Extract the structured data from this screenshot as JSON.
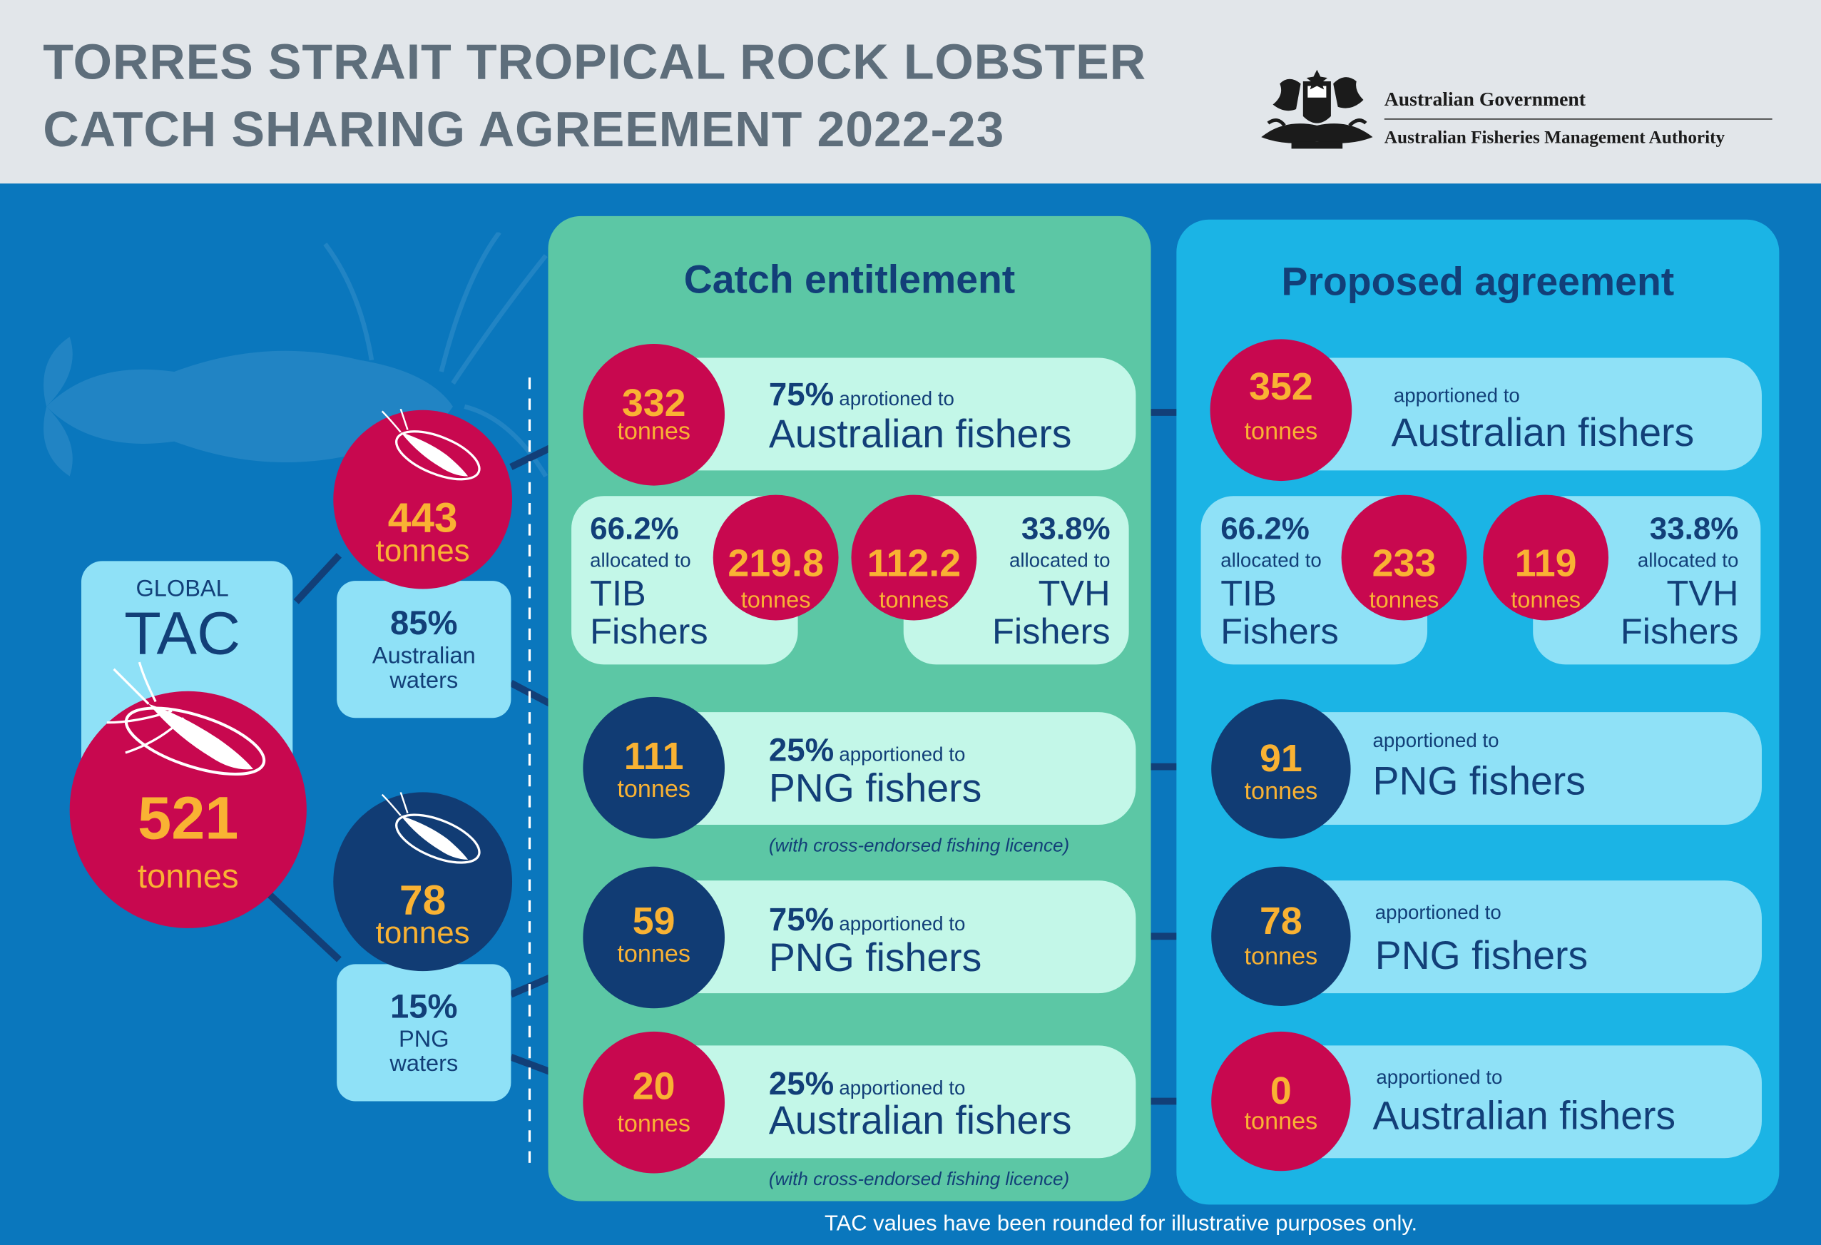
{
  "title": {
    "line1": "TORRES STRAIT TROPICAL ROCK LOBSTER",
    "line2": "CATCH  SHARING AGREEMENT 2022-23"
  },
  "government": {
    "name": "Australian Government",
    "agency": "Australian Fisheries Management Authority",
    "crest_icon": "coat-of-arms-icon"
  },
  "global": {
    "label": "GLOBAL",
    "tac": "TAC",
    "value": "521",
    "unit": "tonnes"
  },
  "australian_waters": {
    "value": "443",
    "unit": "tonnes",
    "percent": "85%",
    "label_line1": "Australian",
    "label_line2": "waters"
  },
  "png_waters": {
    "value": "78",
    "unit": "tonnes",
    "percent": "15%",
    "label_line1": "PNG",
    "label_line2": "waters"
  },
  "catch_entitlement": {
    "title": "Catch entitlement",
    "aus_fishers": {
      "value": "332",
      "unit": "tonnes",
      "percent": "75%",
      "verb": "aprotioned to",
      "target": "Australian fishers"
    },
    "tib": {
      "percent": "66.2%",
      "verb": "allocated to",
      "line1": "TIB",
      "line2": "Fishers",
      "value": "219.8",
      "unit": "tonnes"
    },
    "tvh": {
      "percent": "33.8%",
      "verb": "allocated to",
      "line1": "TVH",
      "line2": "Fishers",
      "value": "112.2",
      "unit": "tonnes"
    },
    "png_from_aus": {
      "value": "111",
      "unit": "tonnes",
      "percent": "25%",
      "verb": "apportioned to",
      "target": "PNG fishers",
      "note": "(with cross-endorsed fishing licence)"
    },
    "png_from_png": {
      "value": "59",
      "unit": "tonnes",
      "percent": "75%",
      "verb": "apportioned to",
      "target": "PNG fishers"
    },
    "aus_from_png": {
      "value": "20",
      "unit": "tonnes",
      "percent": "25%",
      "verb": "apportioned to",
      "target": "Australian fishers",
      "note": "(with cross-endorsed fishing licence)"
    }
  },
  "proposed_agreement": {
    "title": "Proposed agreement",
    "aus_fishers": {
      "value": "352",
      "unit": "tonnes",
      "verb": "apportioned to",
      "target": "Australian fishers"
    },
    "tib": {
      "percent": "66.2%",
      "verb": "allocated to",
      "line1": "TIB",
      "line2": "Fishers",
      "value": "233",
      "unit": "tonnes"
    },
    "tvh": {
      "percent": "33.8%",
      "verb": "allocated to",
      "line1": "TVH",
      "line2": "Fishers",
      "value": "119",
      "unit": "tonnes"
    },
    "png_from_aus": {
      "value": "91",
      "unit": "tonnes",
      "verb": "apportioned to",
      "target": "PNG fishers"
    },
    "png_from_png": {
      "value": "78",
      "unit": "tonnes",
      "verb": "apportioned to",
      "target": "PNG fishers"
    },
    "aus_from_png": {
      "value": "0",
      "unit": "tonnes",
      "verb": "apportioned to",
      "target": "Australian fishers"
    }
  },
  "footer": "TAC values have been rounded for illustrative purposes only.",
  "colors": {
    "crimson": "#c8084f",
    "navy": "#113c74",
    "gold": "#f9b233",
    "mint": "#c3f7e8",
    "light_cyan": "#8fe1f7",
    "green_panel": "#5cc7a5",
    "blue_panel": "#1bb4e5",
    "background": "#0a77bd"
  }
}
